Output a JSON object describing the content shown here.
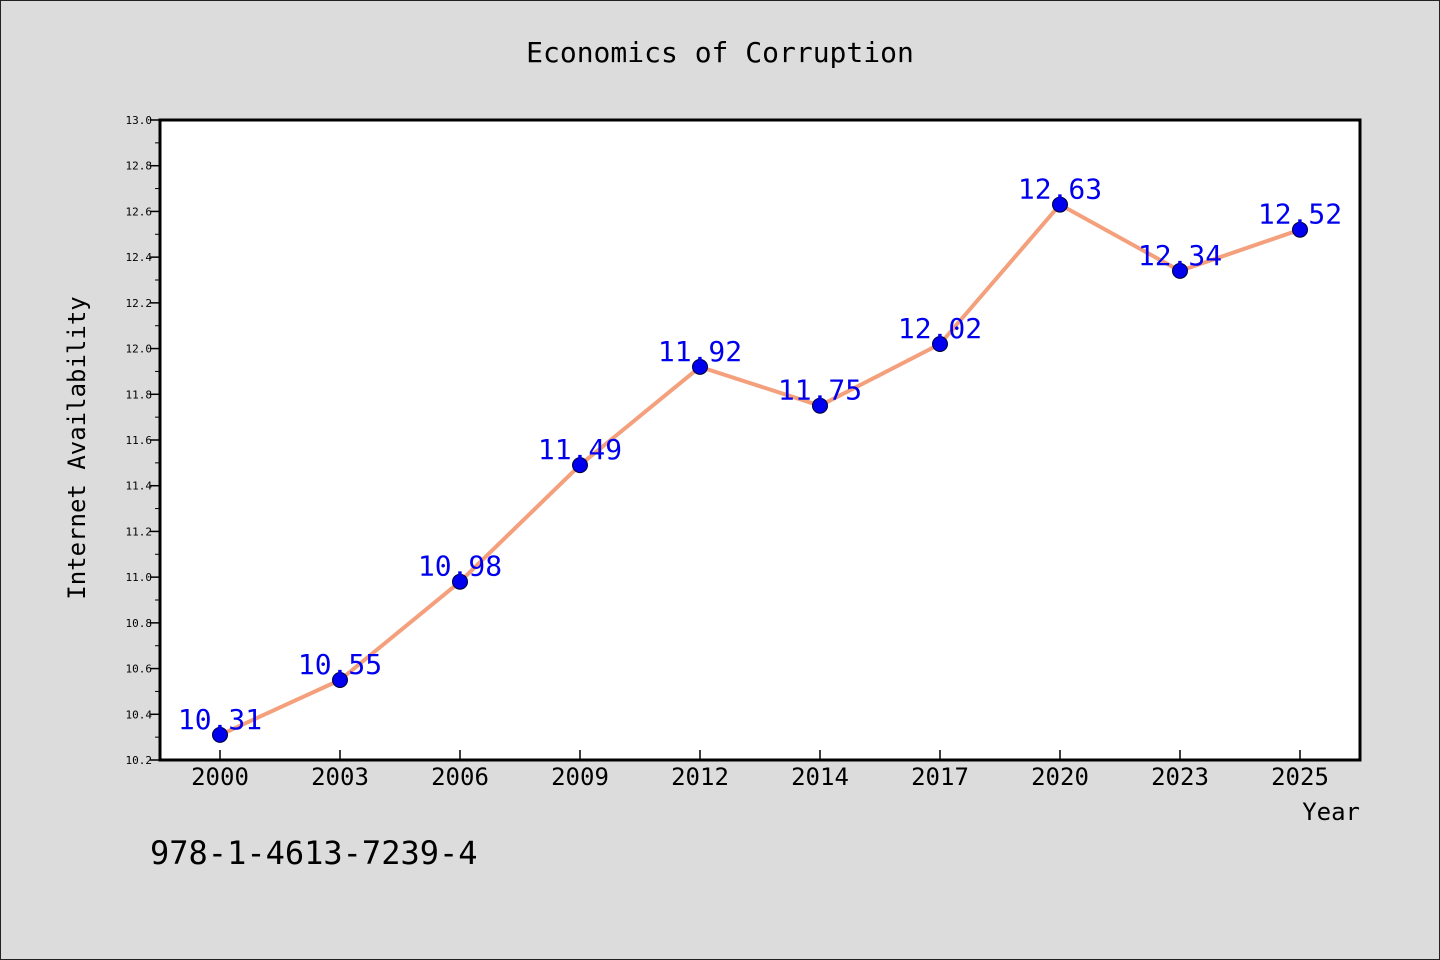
{
  "chart_data": {
    "type": "line",
    "title": "Economics of Corruption",
    "xlabel": "Year",
    "ylabel": "Internet Availability",
    "categories": [
      "2000",
      "2003",
      "2006",
      "2009",
      "2012",
      "2014",
      "2017",
      "2020",
      "2023",
      "2025"
    ],
    "series": [
      {
        "values": [
          10.31,
          10.55,
          10.98,
          11.49,
          11.92,
          11.75,
          12.02,
          12.63,
          12.34,
          12.52
        ],
        "labels": [
          "10.31",
          "10.55",
          "10.98",
          "11.49",
          "11.92",
          "11.75",
          "12.02",
          "12.63",
          "12.34",
          "12.52"
        ]
      }
    ],
    "ylim": [
      10.2,
      13.0
    ],
    "yticks": [
      "10.2",
      "10.4",
      "10.6",
      "10.8",
      "11.0",
      "11.2",
      "11.4",
      "11.6",
      "11.8",
      "12.0",
      "12.2",
      "12.4",
      "12.6",
      "12.8",
      "13.0"
    ],
    "grid": false,
    "legend": "none",
    "colors": {
      "line": "#f4a07c",
      "marker": "#0000ee",
      "label": "#0000ee",
      "background": "#dcdcdc",
      "plot_background": "#ffffff"
    }
  },
  "annotation": {
    "isbn": "978-1-4613-7239-4"
  }
}
